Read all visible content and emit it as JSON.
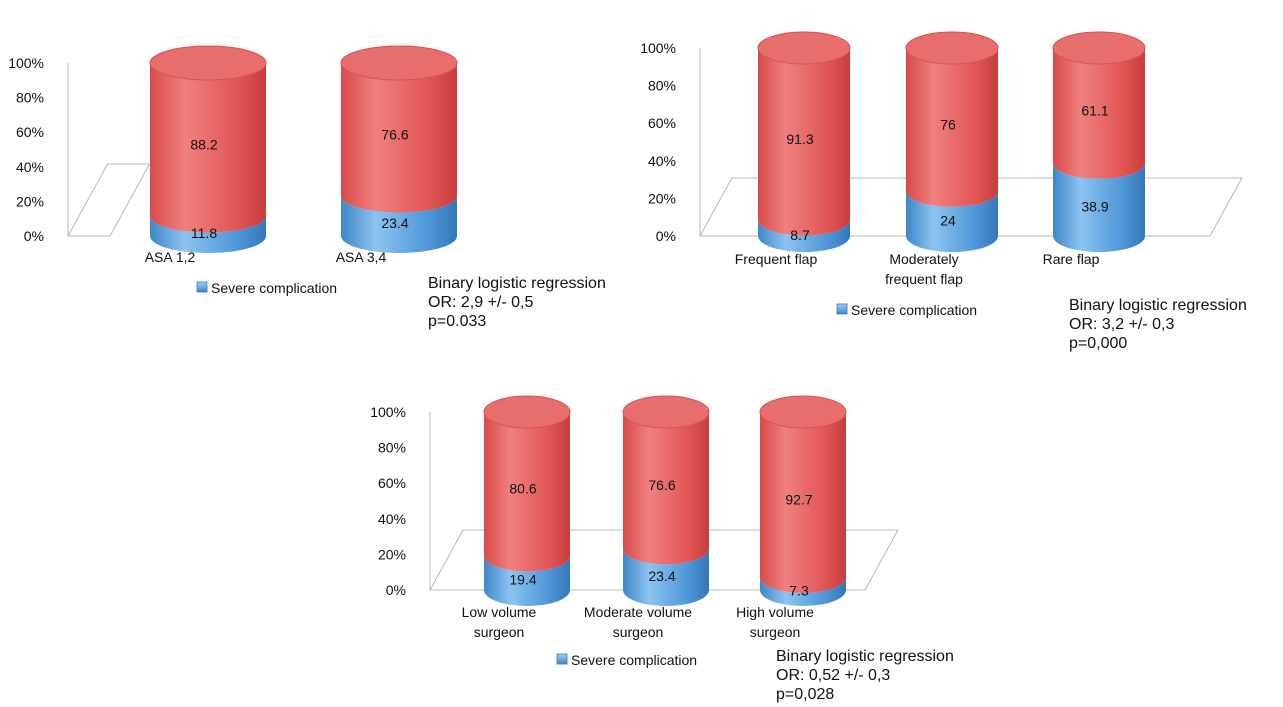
{
  "chart_data": [
    {
      "type": "bar",
      "categories": [
        "ASA 1,2",
        "ASA 3,4"
      ],
      "series": [
        {
          "name": "Severe complication",
          "values": [
            11.8,
            23.4
          ],
          "color": "#5aa0dc"
        },
        {
          "name": "",
          "values": [
            88.2,
            76.6
          ],
          "color": "#e85c5c"
        }
      ],
      "yticks": [
        "0%",
        "20%",
        "40%",
        "60%",
        "80%",
        "100%"
      ],
      "ylim": [
        0,
        100
      ],
      "legend": "Severe complication",
      "annotation": [
        "Binary logistic regression",
        "OR: 2,9 +/- 0,5",
        "p=0.033"
      ]
    },
    {
      "type": "bar",
      "categories": [
        [
          "Frequent flap"
        ],
        [
          "Moderately",
          "frequent flap"
        ],
        [
          "Rare flap"
        ]
      ],
      "series": [
        {
          "name": "Severe complication",
          "values": [
            8.7,
            24,
            38.9
          ],
          "color": "#5aa0dc"
        },
        {
          "name": "",
          "values": [
            91.3,
            76,
            61.1
          ],
          "color": "#e85c5c"
        }
      ],
      "yticks": [
        "0%",
        "20%",
        "40%",
        "60%",
        "80%",
        "100%"
      ],
      "ylim": [
        0,
        100
      ],
      "legend": "Severe complication",
      "annotation": [
        "Binary logistic regression",
        "OR: 3,2 +/- 0,3",
        "p=0,000"
      ]
    },
    {
      "type": "bar",
      "categories": [
        [
          "Low volume",
          "surgeon"
        ],
        [
          "Moderate volume",
          "surgeon"
        ],
        [
          "High volume",
          "surgeon"
        ]
      ],
      "series": [
        {
          "name": "Severe complication",
          "values": [
            19.4,
            23.4,
            7.3
          ],
          "color": "#5aa0dc"
        },
        {
          "name": "",
          "values": [
            80.6,
            76.6,
            92.7
          ],
          "color": "#e85c5c"
        }
      ],
      "yticks": [
        "0%",
        "20%",
        "40%",
        "60%",
        "80%",
        "100%"
      ],
      "ylim": [
        0,
        100
      ],
      "legend": "Severe complication",
      "annotation": [
        "Binary logistic regression",
        "OR: 0,52 +/- 0,3",
        "p=0,028"
      ]
    }
  ]
}
